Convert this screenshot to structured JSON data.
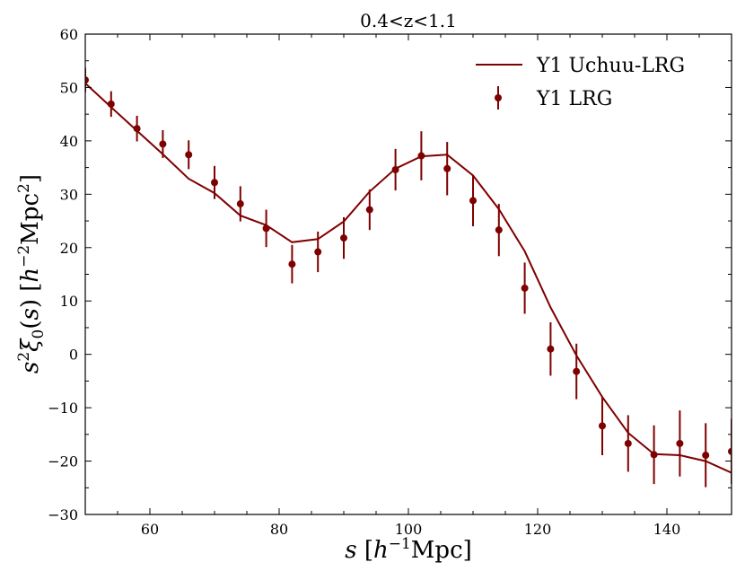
{
  "chart_data": {
    "type": "line",
    "title": "0.4<z<1.1",
    "xlabel": "s [h^-1 Mpc]",
    "ylabel": "s^2 ξ0(s) [h^-2 Mpc^2]",
    "xlim": [
      50,
      150
    ],
    "ylim": [
      -30,
      60
    ],
    "x_ticks": [
      60,
      80,
      100,
      120,
      140
    ],
    "x_tick_labels": [
      "60",
      "80",
      "100",
      "120",
      "140"
    ],
    "y_ticks": [
      -30,
      -20,
      -10,
      0,
      10,
      20,
      30,
      40,
      50,
      60
    ],
    "y_tick_labels": [
      "−30",
      "−20",
      "−10",
      "0",
      "10",
      "20",
      "30",
      "40",
      "50",
      "60"
    ],
    "legend_position": "top-right",
    "colors": {
      "series": "#7f0000"
    },
    "series": [
      {
        "name": "Y1 Uchuu-LRG",
        "style": "line",
        "x": [
          50,
          54,
          58,
          62,
          66,
          70,
          74,
          78,
          82,
          86,
          90,
          94,
          98,
          102,
          106,
          110,
          114,
          118,
          122,
          126,
          130,
          134,
          138,
          142,
          146,
          150
        ],
        "y": [
          50.8,
          46.3,
          41.9,
          37.5,
          32.9,
          30.2,
          26.0,
          24.2,
          21.0,
          21.6,
          24.9,
          30.5,
          34.8,
          37.1,
          37.4,
          33.5,
          27.2,
          19.3,
          8.8,
          -0.2,
          -8.0,
          -14.7,
          -18.7,
          -18.9,
          -20.0,
          -22.2
        ]
      },
      {
        "name": "Y1 LRG",
        "style": "errorbar",
        "x": [
          50,
          54,
          58,
          62,
          66,
          70,
          74,
          78,
          82,
          86,
          90,
          94,
          98,
          102,
          106,
          110,
          114,
          118,
          122,
          126,
          130,
          134,
          138,
          142,
          146,
          150
        ],
        "y": [
          51.4,
          46.9,
          42.3,
          39.4,
          37.4,
          32.2,
          28.2,
          23.6,
          16.9,
          19.2,
          21.8,
          27.1,
          34.6,
          37.2,
          34.8,
          28.8,
          23.3,
          12.4,
          1.0,
          -3.2,
          -13.4,
          -16.7,
          -18.8,
          -16.7,
          -18.9,
          -18.2
        ],
        "yerr": [
          2.3,
          2.4,
          2.4,
          2.6,
          2.7,
          3.1,
          3.3,
          3.5,
          3.6,
          3.8,
          3.9,
          3.8,
          3.9,
          4.6,
          5.0,
          4.8,
          4.9,
          4.8,
          5.0,
          5.2,
          5.5,
          5.3,
          5.5,
          6.2,
          6.0,
          6.1
        ]
      }
    ]
  }
}
